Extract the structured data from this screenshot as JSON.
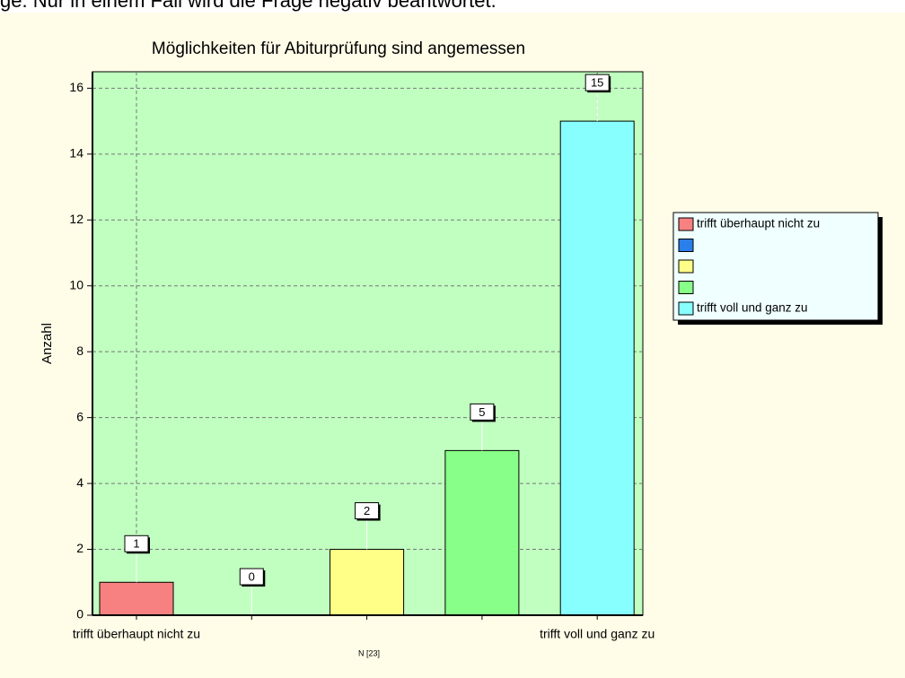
{
  "header_text": "ge. Nur in einem Fall wird die Frage negativ beantwortet.",
  "chart_data": {
    "type": "bar",
    "title": "Möglichkeiten für Abiturprüfung sind angemessen",
    "ylabel": "Anzahl",
    "note": "N [23]",
    "categories": [
      "trifft überhaupt nicht zu",
      null,
      null,
      null,
      "trifft voll und ganz zu"
    ],
    "values": [
      1,
      0,
      2,
      5,
      15
    ],
    "colors": [
      "#f78181",
      "#2b7fea",
      "#ffff88",
      "#88ff88",
      "#88ffff"
    ],
    "ylim": [
      0,
      16.5
    ],
    "yticks": [
      0,
      2,
      4,
      6,
      8,
      10,
      12,
      14,
      16
    ],
    "grid": true,
    "legend": "right"
  }
}
